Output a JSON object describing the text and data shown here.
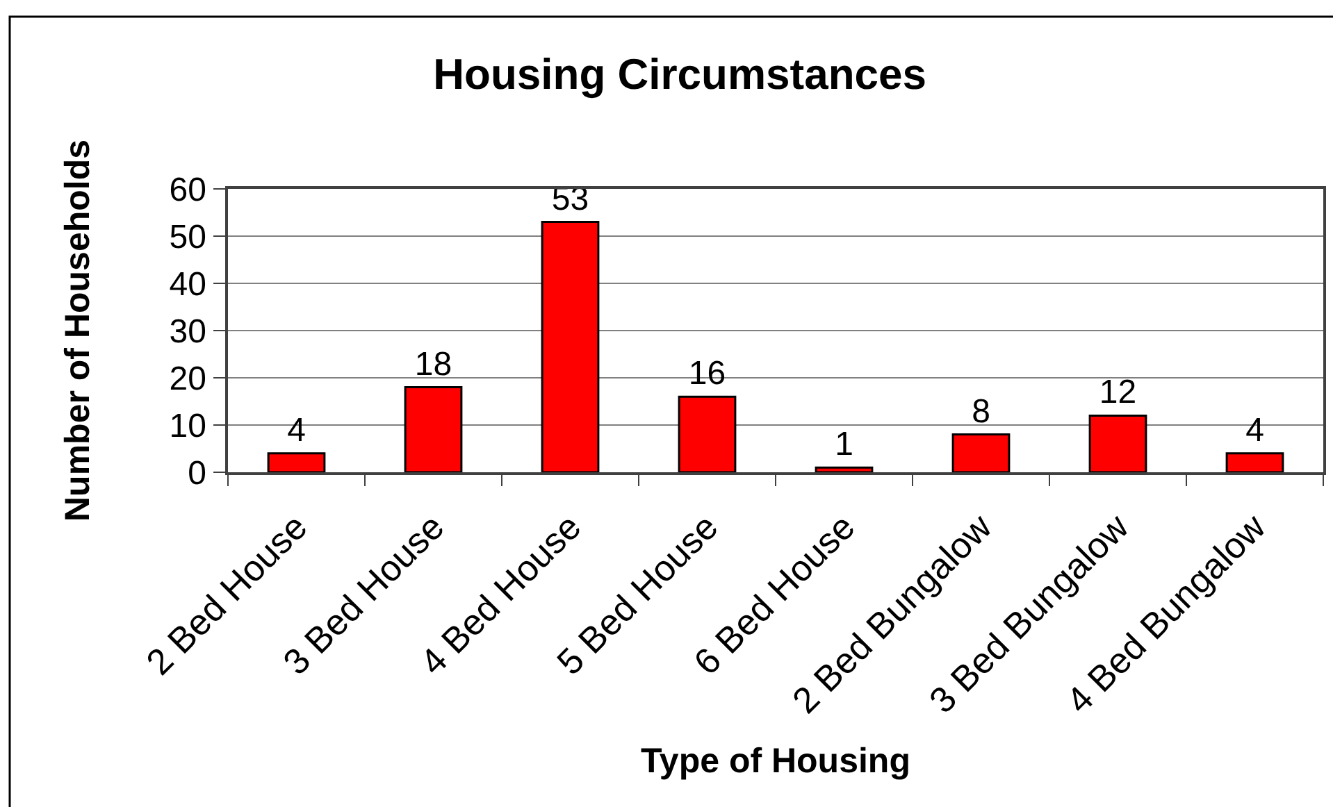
{
  "chart_data": {
    "type": "bar",
    "title": "Housing Circumstances",
    "xlabel": "Type of Housing",
    "ylabel": "Number of Households",
    "categories": [
      "2 Bed House",
      "3 Bed House",
      "4 Bed House",
      "5 Bed House",
      "6 Bed House",
      "2 Bed Bungalow",
      "3 Bed Bungalow",
      "4 Bed Bungalow"
    ],
    "values": [
      4,
      18,
      53,
      16,
      1,
      8,
      12,
      4
    ],
    "color": "#ff0000",
    "ylim": [
      0,
      60
    ],
    "yticks": [
      0,
      10,
      20,
      30,
      40,
      50,
      60
    ],
    "grid": "y",
    "data_labels": true
  }
}
